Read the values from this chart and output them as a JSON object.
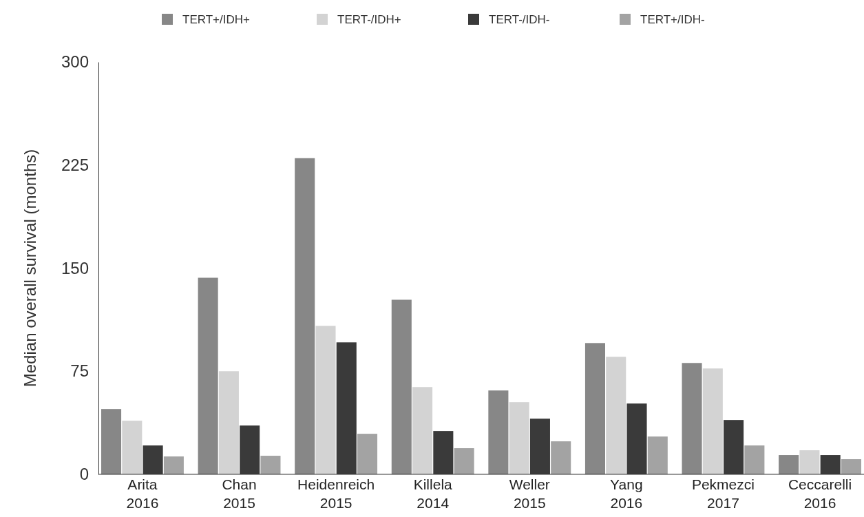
{
  "chart_data": {
    "type": "bar",
    "ylabel": "Median overall survival (months)",
    "categories": [
      "Arita\n2016",
      "Chan\n2015",
      "Heidenreich\n2015",
      "Killela\n2014",
      "Weller\n2015",
      "Yang\n2016",
      "Pekmezci\n2017",
      "Ceccarelli\n2016"
    ],
    "series": [
      {
        "name": "TERT+/IDH+",
        "color": "#878787",
        "values": [
          47.5,
          143,
          230,
          127,
          61,
          95.5,
          81,
          14
        ]
      },
      {
        "name": "TERT-/IDH+",
        "color": "#d3d3d3",
        "values": [
          39,
          75,
          108,
          63.5,
          52.5,
          85.5,
          77,
          17.5
        ]
      },
      {
        "name": "TERT-/IDH-",
        "color": "#3a3a3a",
        "values": [
          21,
          35.5,
          96,
          31.5,
          40.5,
          51.5,
          39.5,
          14
        ]
      },
      {
        "name": "TERT+/IDH-",
        "color": "#a3a3a3",
        "values": [
          13,
          13.5,
          29.5,
          19,
          24,
          27.5,
          21,
          11
        ]
      }
    ],
    "ylim": [
      0,
      300
    ],
    "yticks": [
      0,
      75,
      150,
      225,
      300
    ],
    "grid": false,
    "legend": "top"
  }
}
